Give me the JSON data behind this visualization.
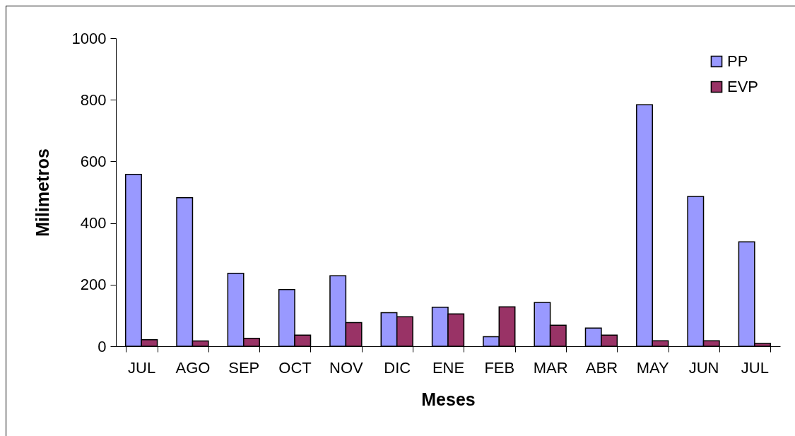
{
  "chart_data": {
    "type": "bar",
    "xlabel": "Meses",
    "ylabel": "Milimetros",
    "categories": [
      "JUL",
      "AGO",
      "SEP",
      "OCT",
      "NOV",
      "DIC",
      "ENE",
      "FEB",
      "MAR",
      "ABR",
      "MAY",
      "JUN",
      "JUL"
    ],
    "series": [
      {
        "name": "PP",
        "color": "#9999ff",
        "values": [
          558,
          482,
          237,
          184,
          229,
          109,
          127,
          31,
          142,
          59,
          784,
          486,
          339
        ]
      },
      {
        "name": "EVP",
        "color": "#993366",
        "values": [
          21,
          17,
          26,
          36,
          77,
          96,
          105,
          128,
          68,
          36,
          18,
          18,
          9
        ]
      }
    ],
    "ylim": [
      0,
      1000
    ],
    "yticks": [
      0,
      200,
      400,
      600,
      800,
      1000
    ],
    "legend": "top right"
  }
}
